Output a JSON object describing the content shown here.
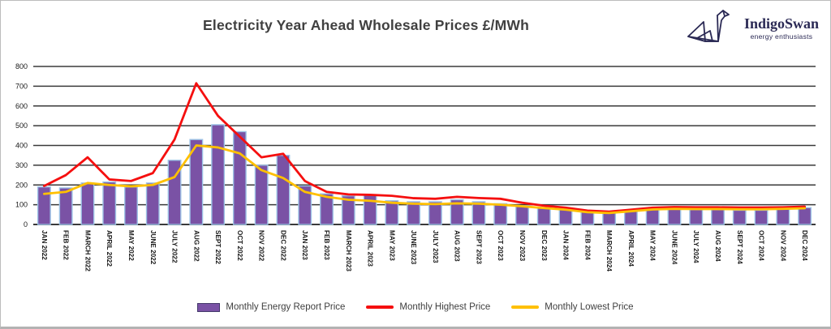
{
  "logo": {
    "name": "IndigoSwan",
    "tagline": "energy enthusiasts",
    "color": "#2b2a55"
  },
  "chart_data": {
    "type": "bar",
    "title": "Electricity Year Ahead Wholesale Prices £/MWh",
    "xlabel": "",
    "ylabel": "",
    "ylim": [
      0,
      800
    ],
    "ytick_step": 100,
    "grid": true,
    "legend_position": "bottom",
    "categories": [
      "JAN 2022",
      "FEB 2022",
      "MARCH 2022",
      "APRIL 2022",
      "MAY 2022",
      "JUNE 2022",
      "JULY 2022",
      "AUG 2022",
      "SEPT 2022",
      "OCT 2022",
      "NOV 2022",
      "DEC 2022",
      "JAN 2023",
      "FEB 2023",
      "MARCH 2023",
      "APRIL 2023",
      "MAY 2023",
      "JUNE 2023",
      "JULY 2023",
      "AUG 2023",
      "SEPT 2023",
      "OCT 2023",
      "NOV 2023",
      "DEC 2023",
      "JAN 2024",
      "FEB 2024",
      "MARCH 2024",
      "APRIL 2024",
      "MAY 2024",
      "JUNE 2024",
      "JULY 2024",
      "AUG 2024",
      "SEPT 2024",
      "OCT 2024",
      "NOV 2024",
      "DEC 2024"
    ],
    "series": [
      {
        "name": "Monthly Energy Report Price",
        "kind": "bar",
        "color": "#7a52a5",
        "edge_color": "#9dc3e6",
        "values": [
          190,
          185,
          210,
          215,
          190,
          210,
          325,
          430,
          505,
          470,
          300,
          350,
          195,
          155,
          145,
          150,
          120,
          115,
          115,
          125,
          115,
          105,
          95,
          85,
          75,
          62,
          60,
          68,
          75,
          78,
          75,
          75,
          72,
          72,
          78,
          85
        ]
      },
      {
        "name": "Monthly Highest Price",
        "kind": "line",
        "color": "#f50f0f",
        "values": [
          195,
          250,
          340,
          228,
          220,
          260,
          430,
          715,
          550,
          445,
          340,
          358,
          220,
          165,
          152,
          150,
          145,
          133,
          130,
          140,
          134,
          130,
          110,
          95,
          85,
          70,
          65,
          75,
          85,
          88,
          87,
          87,
          86,
          86,
          87,
          90
        ]
      },
      {
        "name": "Monthly Lowest Price",
        "kind": "line",
        "color": "#ffc000",
        "values": [
          155,
          165,
          210,
          200,
          193,
          200,
          240,
          400,
          390,
          360,
          275,
          235,
          165,
          140,
          125,
          120,
          110,
          105,
          103,
          107,
          105,
          100,
          92,
          83,
          75,
          62,
          58,
          67,
          76,
          79,
          78,
          78,
          77,
          77,
          79,
          82
        ]
      }
    ]
  }
}
